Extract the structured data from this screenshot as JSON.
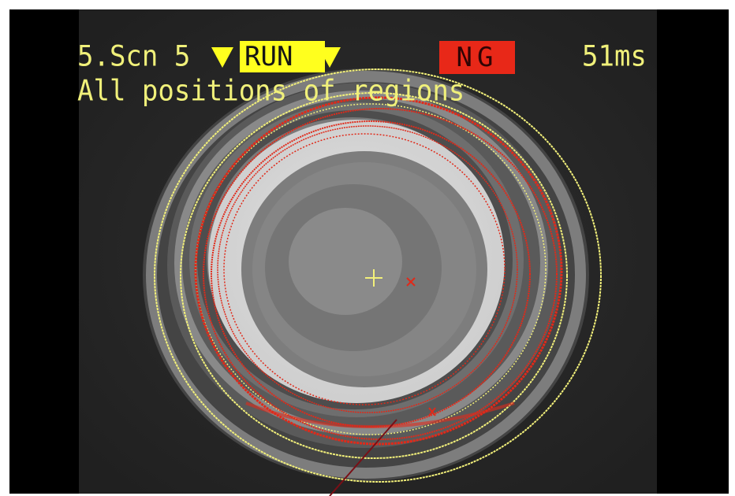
{
  "status_bar": {
    "scene": "5.Scn 5",
    "mode": "RUN",
    "result": "NG",
    "processing_time": "51ms"
  },
  "subtitle": "All positions of regions",
  "colors": {
    "overlay_text": "#f0f07a",
    "mode_badge": "#ffff1e",
    "result_badge_ng": "#e82818",
    "region_outline_yellow": "#f2f07a",
    "region_outline_red": "#e02a1a"
  },
  "icons": {
    "scene_dropdown": "triangle-down-icon",
    "mode_dropdown": "triangle-down-icon",
    "center_marker": "crosshair-icon",
    "detected_center": "x-marker-icon"
  }
}
